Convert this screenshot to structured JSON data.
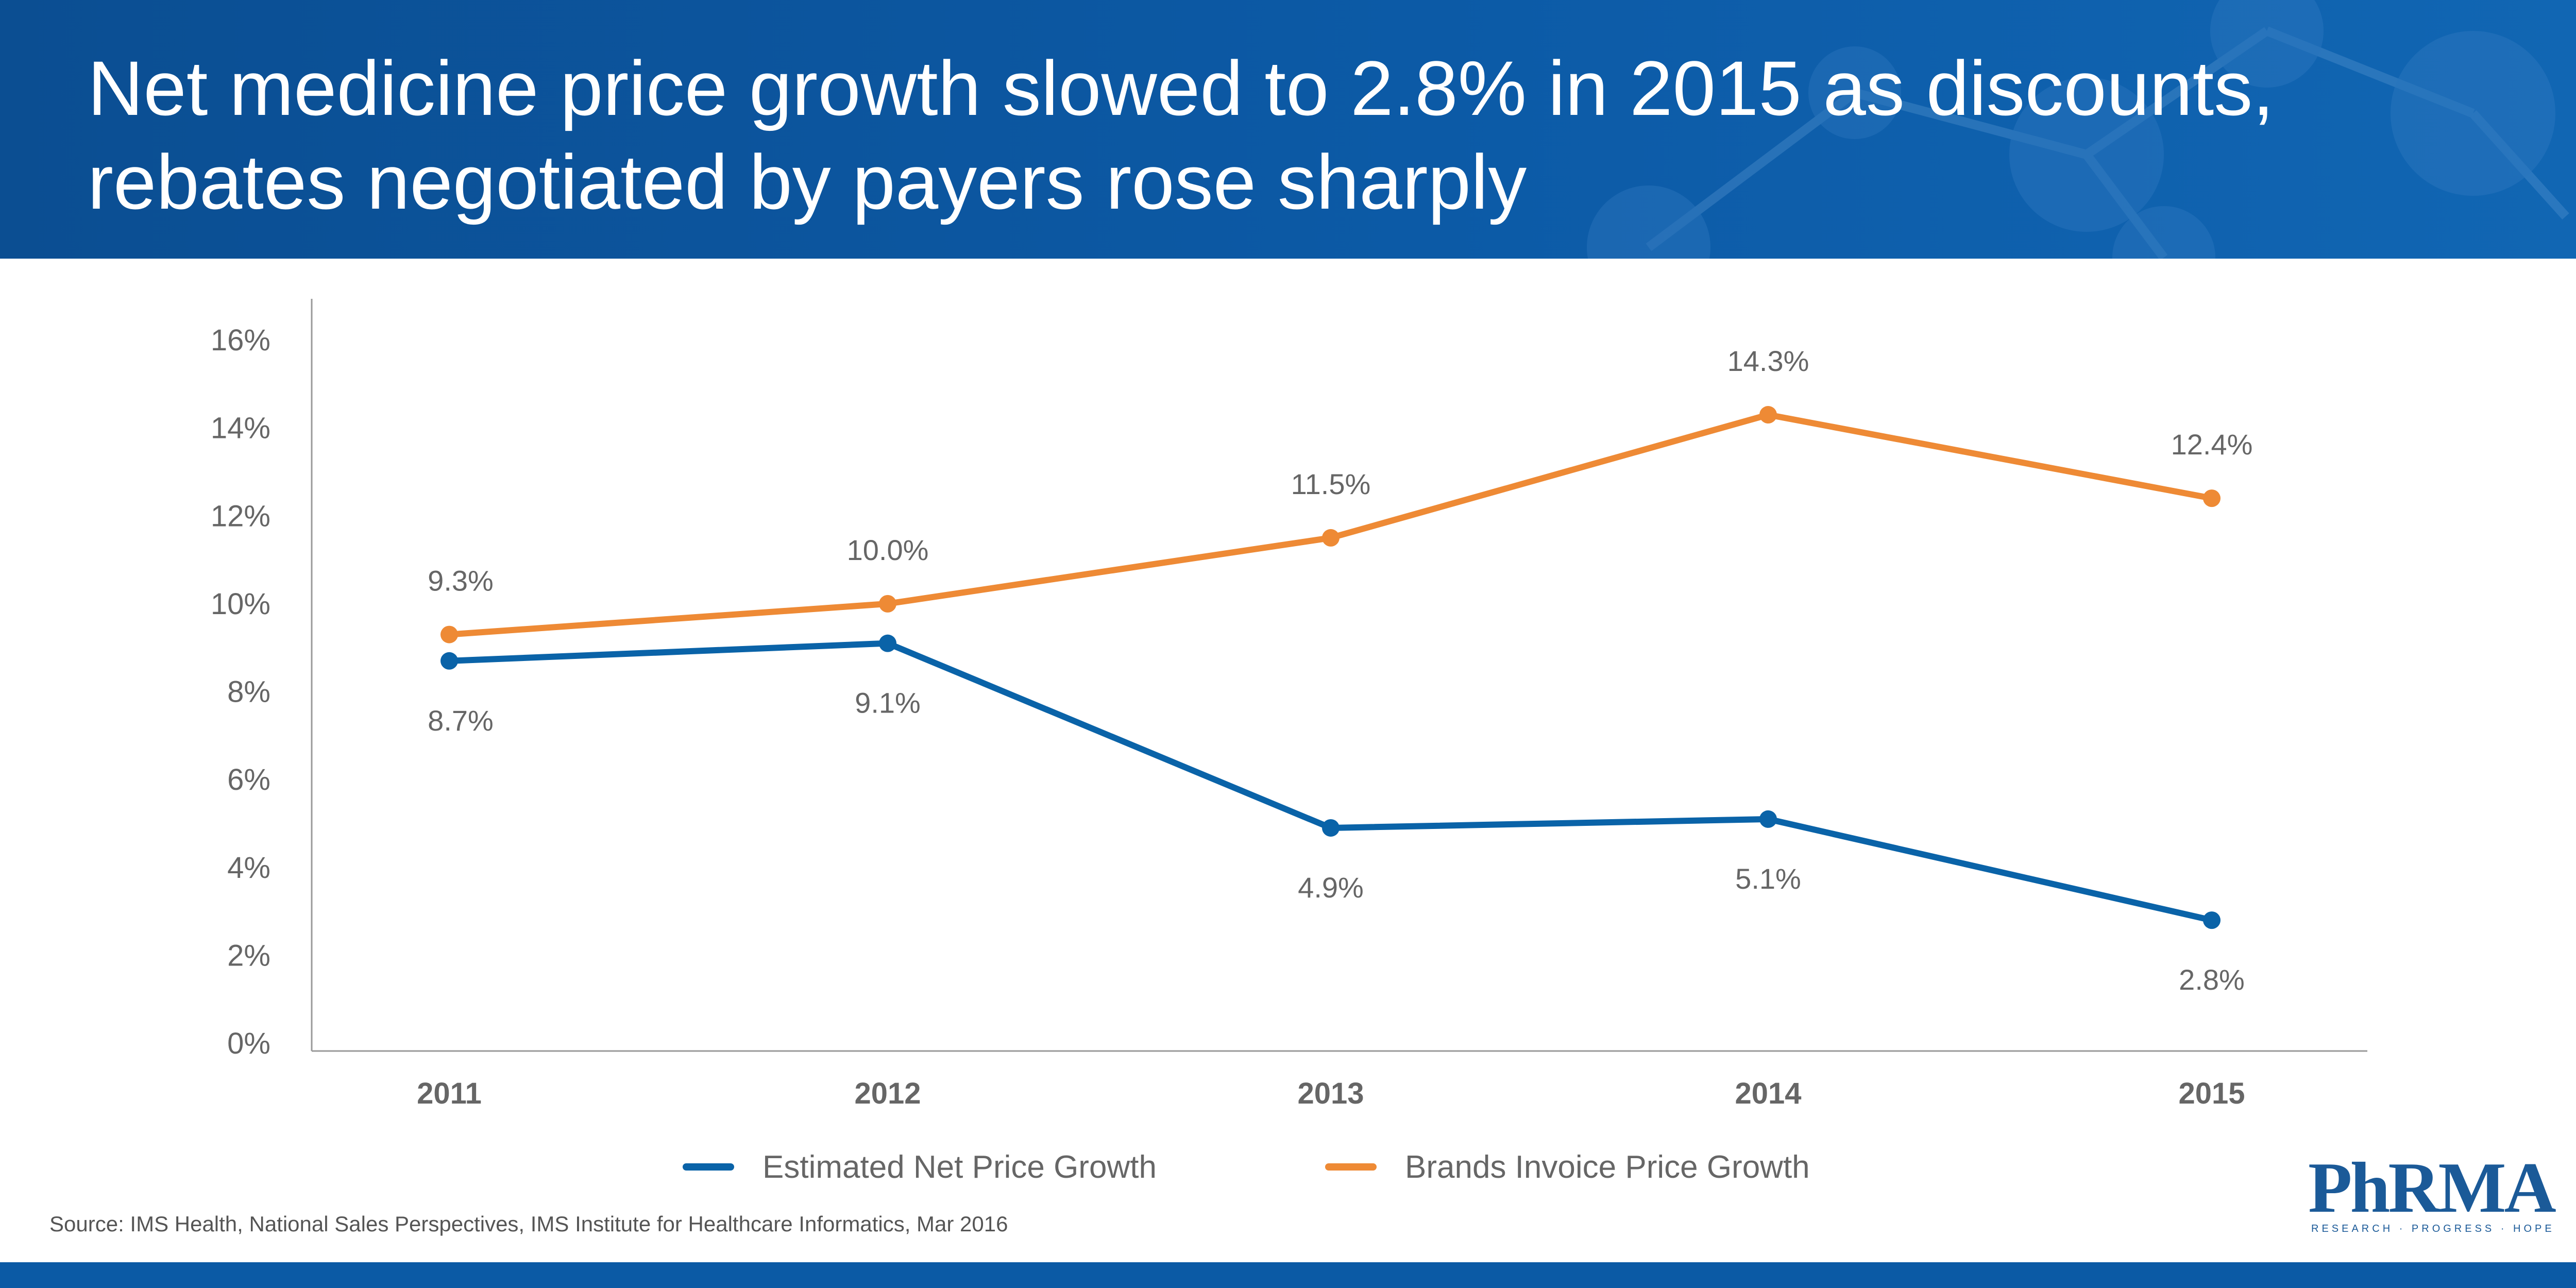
{
  "header": {
    "title": "Net medicine price growth slowed to 2.8% in 2015 as discounts, rebates negotiated by payers rose sharply"
  },
  "chart_data": {
    "type": "line",
    "x": [
      "2011",
      "2012",
      "2013",
      "2014",
      "2015"
    ],
    "series": [
      {
        "name": "Estimated Net Price Growth",
        "color": "#0a63a8",
        "values": [
          8.7,
          9.1,
          4.9,
          5.1,
          2.8
        ],
        "labels": [
          "8.7%",
          "9.1%",
          "4.9%",
          "5.1%",
          "2.8%"
        ],
        "label_position": "below"
      },
      {
        "name": "Brands Invoice Price Growth",
        "color": "#ee8a35",
        "values": [
          9.3,
          10.0,
          11.5,
          14.3,
          12.4
        ],
        "labels": [
          "9.3%",
          "10.0%",
          "11.5%",
          "14.3%",
          "12.4%"
        ],
        "label_position": "above"
      }
    ],
    "yticks": [
      0,
      2,
      4,
      6,
      8,
      10,
      12,
      14,
      16
    ],
    "ytick_labels": [
      "0%",
      "2%",
      "4%",
      "6%",
      "8%",
      "10%",
      "12%",
      "14%",
      "16%"
    ],
    "ylim": [
      0,
      16
    ],
    "grid": false,
    "legend_position": "bottom-center"
  },
  "legend": {
    "items": [
      "Estimated Net Price Growth",
      "Brands Invoice Price Growth"
    ]
  },
  "footer": {
    "source": "Source: IMS Health, National Sales Perspectives, IMS Institute for Healthcare Informatics, Mar 2016",
    "logo_text": "PhRMA",
    "logo_tagline": "RESEARCH · PROGRESS · HOPE"
  },
  "colors": {
    "banner": "#0c5aa6",
    "net_series": "#0a63a8",
    "invoice_series": "#ee8a35",
    "axis": "#999999",
    "text": "#666666"
  }
}
